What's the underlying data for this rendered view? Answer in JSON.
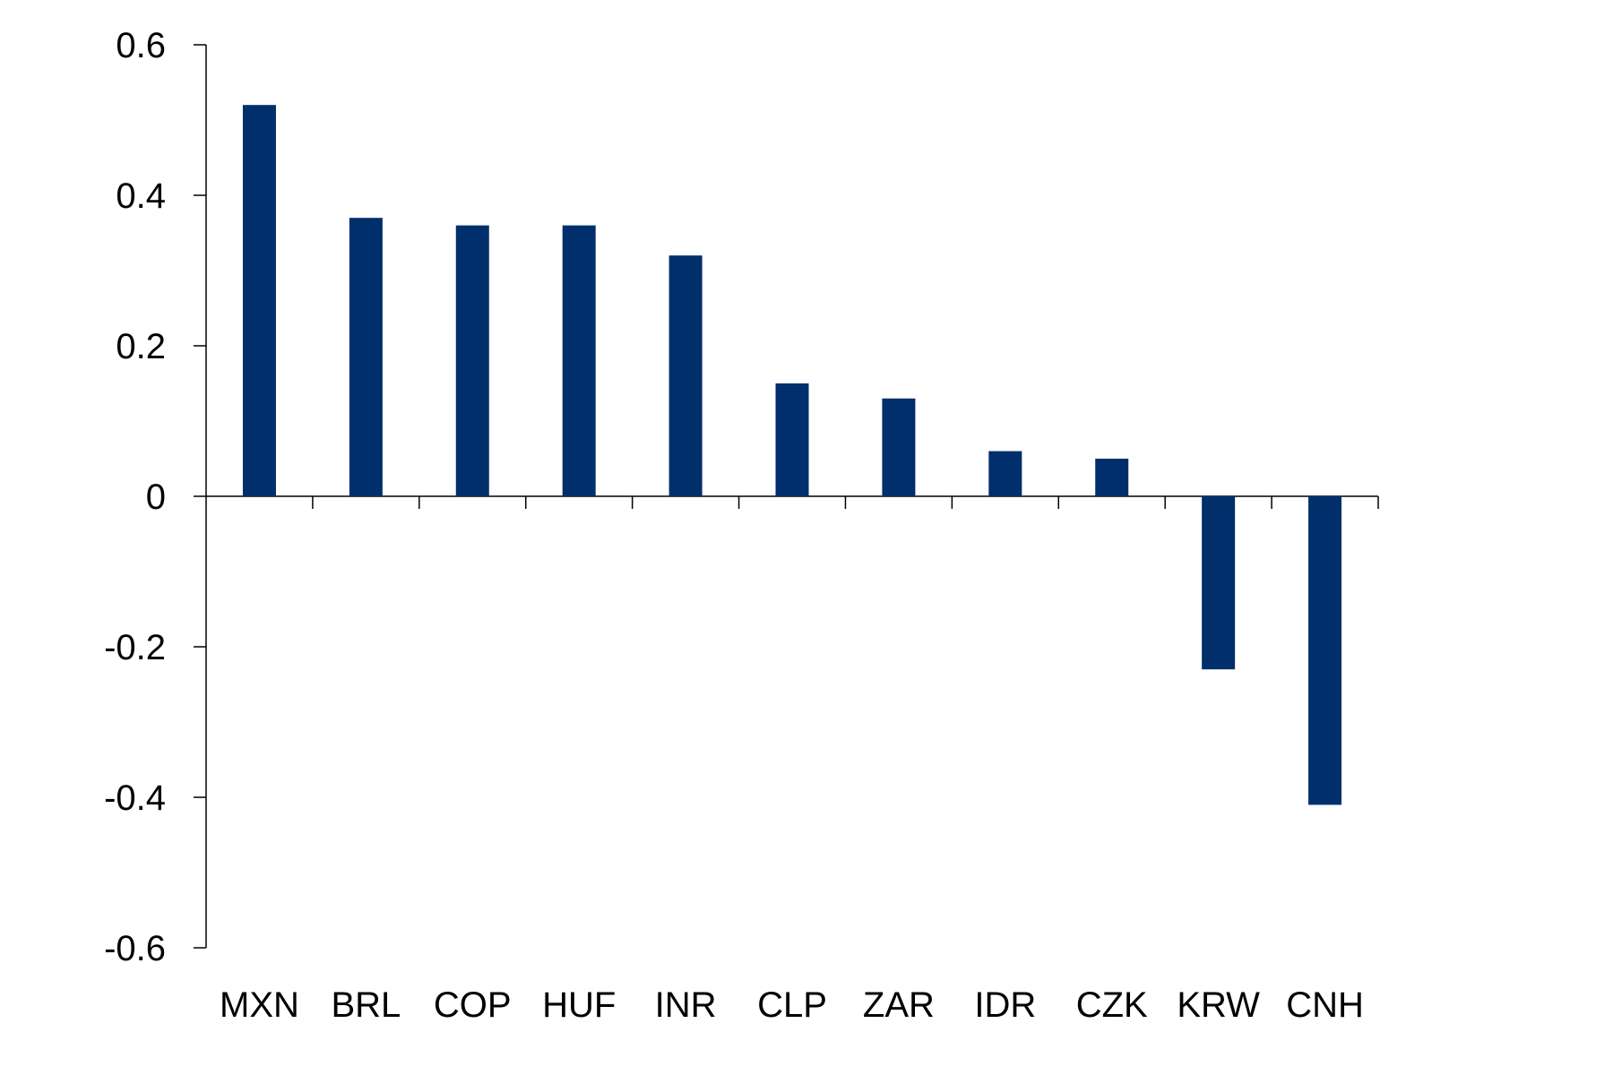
{
  "chart_data": {
    "type": "bar",
    "title": "",
    "xlabel": "",
    "ylabel": "",
    "categories": [
      "MXN",
      "BRL",
      "COP",
      "HUF",
      "INR",
      "CLP",
      "ZAR",
      "IDR",
      "CZK",
      "KRW",
      "CNH"
    ],
    "values": [
      0.52,
      0.37,
      0.36,
      0.36,
      0.32,
      0.15,
      0.13,
      0.06,
      0.05,
      -0.23,
      -0.41
    ],
    "ylim": [
      -0.6,
      0.6
    ],
    "yticks": [
      "0.6",
      "0.4",
      "0.2",
      "0",
      "-0.2",
      "-0.4",
      "-0.6"
    ],
    "ytick_values": [
      0.6,
      0.4,
      0.2,
      0,
      -0.2,
      -0.4,
      -0.6
    ],
    "grid": false,
    "legend": "none",
    "colors": {
      "bar": "#002F6C",
      "axis": "#000000",
      "text": "#000000"
    }
  }
}
